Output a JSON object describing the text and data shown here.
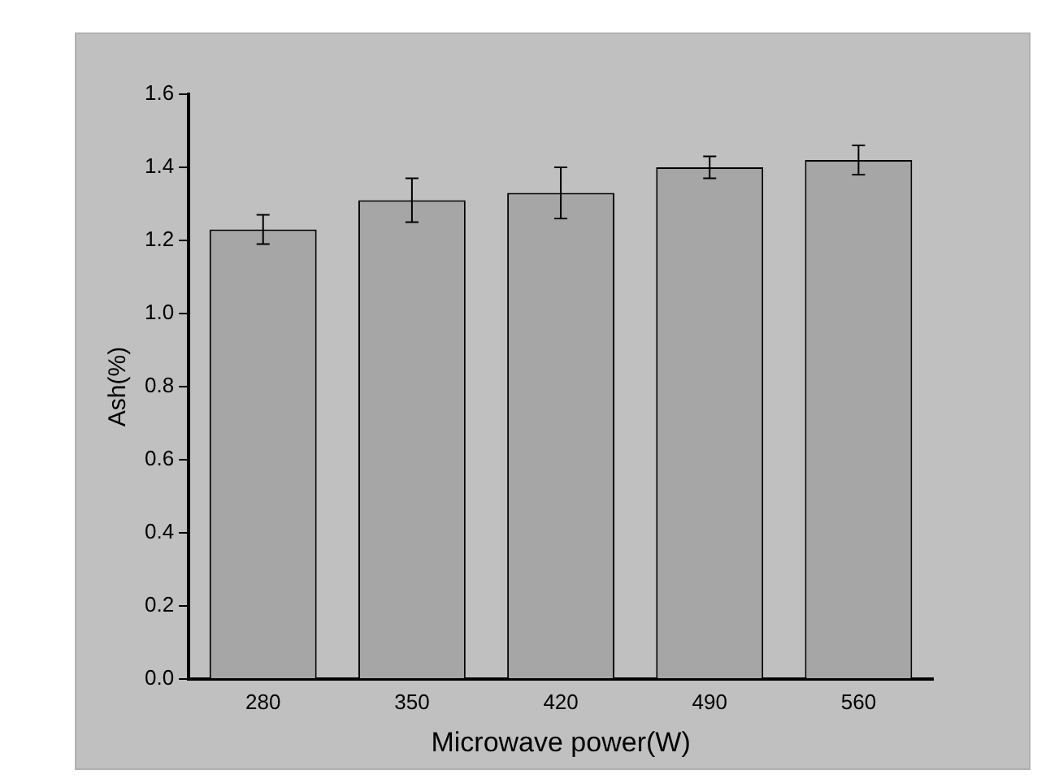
{
  "chart_data": {
    "type": "bar",
    "xlabel": "Microwave power(W)",
    "ylabel": "Ash(%)",
    "categories": [
      "280",
      "350",
      "420",
      "490",
      "560"
    ],
    "values": [
      1.23,
      1.31,
      1.33,
      1.4,
      1.42
    ],
    "errors": [
      0.04,
      0.06,
      0.07,
      0.03,
      0.04
    ],
    "color": "#a6a6a6",
    "ylim": [
      0,
      1.6
    ],
    "yticks": [
      {
        "value": 0,
        "label": "0.0"
      },
      0.2,
      0.4,
      0.6,
      0.8,
      {
        "value": 1,
        "label": "1.0"
      },
      1.2,
      1.4,
      1.6
    ],
    "grid": false,
    "legend": false
  }
}
